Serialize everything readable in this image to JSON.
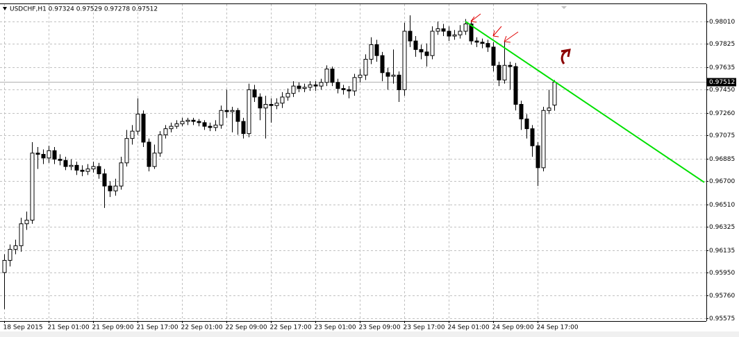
{
  "chart_data": {
    "type": "candlestick",
    "title": "USDCHF,H1 0.97324 0.97529 0.97278 0.97512",
    "categories": [
      "18 Sep 2015",
      null,
      null,
      null,
      null,
      null,
      null,
      null,
      "21 Sep 01:00",
      null,
      null,
      null,
      null,
      null,
      null,
      null,
      "21 Sep 09:00",
      null,
      null,
      null,
      null,
      null,
      null,
      null,
      "21 Sep 17:00",
      null,
      null,
      null,
      null,
      null,
      null,
      null,
      "22 Sep 01:00",
      null,
      null,
      null,
      null,
      null,
      null,
      null,
      "22 Sep 09:00",
      null,
      null,
      null,
      null,
      null,
      null,
      null,
      "22 Sep 17:00",
      null,
      null,
      null,
      null,
      null,
      null,
      null,
      "23 Sep 01:00",
      null,
      null,
      null,
      null,
      null,
      null,
      null,
      "23 Sep 09:00",
      null,
      null,
      null,
      null,
      null,
      null,
      null,
      "23 Sep 17:00",
      null,
      null,
      null,
      null,
      null,
      null,
      null,
      "24 Sep 01:00",
      null,
      null,
      null,
      null,
      null,
      null,
      null,
      "24 Sep 09:00",
      null,
      null,
      null,
      null,
      null,
      null,
      null,
      "24 Sep 17:00",
      null,
      null,
      null
    ],
    "open": [
      0.9595,
      0.9605,
      0.9614,
      0.9617,
      0.9635,
      0.9638,
      0.9693,
      0.9692,
      0.9689,
      0.9695,
      0.9688,
      0.9687,
      0.9682,
      0.9683,
      0.9679,
      0.9678,
      0.968,
      0.9682,
      0.9676,
      0.9666,
      0.9662,
      0.9666,
      0.9685,
      0.9705,
      0.9711,
      0.9725,
      0.9702,
      0.9682,
      0.9693,
      0.9708,
      0.9713,
      0.9715,
      0.9717,
      0.9719,
      0.972,
      0.9719,
      0.9718,
      0.9715,
      0.9714,
      0.9716,
      0.9728,
      0.9727,
      0.9728,
      0.9719,
      0.9709,
      0.9745,
      0.9739,
      0.973,
      0.9733,
      0.9732,
      0.9734,
      0.9739,
      0.9742,
      0.9748,
      0.9746,
      0.9747,
      0.9749,
      0.9748,
      0.9751,
      0.9762,
      0.9751,
      0.9746,
      0.9745,
      0.9744,
      0.9755,
      0.9757,
      0.977,
      0.9782,
      0.9773,
      0.9759,
      0.9756,
      0.9757,
      0.9745,
      0.9793,
      0.9785,
      0.9778,
      0.9776,
      0.9773,
      0.9793,
      0.9795,
      0.9793,
      0.9789,
      0.979,
      0.9793,
      0.9799,
      0.9785,
      0.9784,
      0.9783,
      0.978,
      0.9765,
      0.9753,
      0.9765,
      0.9764,
      0.9733,
      0.9721,
      0.9713,
      0.9699,
      0.9681,
      0.9728,
      0.97324
    ],
    "high": [
      0.961,
      0.9618,
      0.9622,
      0.964,
      0.9645,
      0.9702,
      0.9698,
      0.9696,
      0.9699,
      0.9698,
      0.9692,
      0.969,
      0.9688,
      0.9686,
      0.9683,
      0.9684,
      0.9686,
      0.9685,
      0.968,
      0.967,
      0.9672,
      0.969,
      0.9712,
      0.9716,
      0.9738,
      0.9728,
      0.9705,
      0.97,
      0.9711,
      0.9716,
      0.9718,
      0.972,
      0.9722,
      0.9722,
      0.9722,
      0.9721,
      0.972,
      0.9718,
      0.972,
      0.9732,
      0.9745,
      0.9731,
      0.973,
      0.9722,
      0.975,
      0.9749,
      0.9742,
      0.974,
      0.9738,
      0.9738,
      0.9743,
      0.9746,
      0.9752,
      0.9751,
      0.975,
      0.9752,
      0.9752,
      0.9754,
      0.9765,
      0.9764,
      0.9754,
      0.9749,
      0.9748,
      0.9758,
      0.9762,
      0.9774,
      0.9788,
      0.9786,
      0.9776,
      0.9763,
      0.9778,
      0.976,
      0.98,
      0.9806,
      0.9789,
      0.9782,
      0.9783,
      0.9797,
      0.9801,
      0.9799,
      0.9797,
      0.9794,
      0.9798,
      0.9803,
      0.9802,
      0.9788,
      0.9787,
      0.9786,
      0.9784,
      0.9768,
      0.9785,
      0.9768,
      0.9767,
      0.9736,
      0.9725,
      0.9716,
      0.9702,
      0.9731,
      0.9745,
      0.97529
    ],
    "low": [
      0.9565,
      0.96,
      0.961,
      0.9612,
      0.963,
      0.9635,
      0.968,
      0.9684,
      0.9685,
      0.9684,
      0.9683,
      0.9679,
      0.9679,
      0.9675,
      0.9674,
      0.9675,
      0.9677,
      0.9672,
      0.9648,
      0.9657,
      0.9658,
      0.9663,
      0.9682,
      0.97,
      0.9708,
      0.9698,
      0.9678,
      0.968,
      0.969,
      0.9705,
      0.971,
      0.9713,
      0.9715,
      0.9716,
      0.9716,
      0.9715,
      0.9712,
      0.9711,
      0.9711,
      0.9713,
      0.9722,
      0.971,
      0.9708,
      0.9705,
      0.9706,
      0.9735,
      0.972,
      0.9705,
      0.9718,
      0.9729,
      0.973,
      0.9736,
      0.9739,
      0.9743,
      0.9743,
      0.9744,
      0.9744,
      0.9745,
      0.9748,
      0.9748,
      0.9742,
      0.9741,
      0.9738,
      0.974,
      0.9751,
      0.9753,
      0.9766,
      0.9768,
      0.9752,
      0.9745,
      0.975,
      0.9735,
      0.974,
      0.978,
      0.9772,
      0.977,
      0.9764,
      0.977,
      0.979,
      0.9789,
      0.9785,
      0.9786,
      0.9787,
      0.979,
      0.9782,
      0.978,
      0.9779,
      0.9776,
      0.976,
      0.9748,
      0.975,
      0.9745,
      0.9728,
      0.9712,
      0.9705,
      0.969,
      0.9666,
      0.9678,
      0.9725,
      0.97278
    ],
    "close": [
      0.9605,
      0.9614,
      0.9617,
      0.9635,
      0.9638,
      0.9693,
      0.9692,
      0.9689,
      0.9695,
      0.9688,
      0.9687,
      0.9682,
      0.9683,
      0.9679,
      0.9678,
      0.968,
      0.9682,
      0.9676,
      0.9666,
      0.9662,
      0.9666,
      0.9685,
      0.9705,
      0.9711,
      0.9725,
      0.9702,
      0.9682,
      0.9693,
      0.9708,
      0.9713,
      0.9715,
      0.9717,
      0.9719,
      0.972,
      0.9719,
      0.9718,
      0.9715,
      0.9714,
      0.9716,
      0.9728,
      0.9727,
      0.9728,
      0.9719,
      0.9709,
      0.9745,
      0.9739,
      0.973,
      0.9733,
      0.9732,
      0.9734,
      0.9739,
      0.9742,
      0.9748,
      0.9746,
      0.9747,
      0.9749,
      0.9748,
      0.9751,
      0.9762,
      0.9751,
      0.9746,
      0.9745,
      0.9744,
      0.9755,
      0.9757,
      0.977,
      0.9782,
      0.9773,
      0.9759,
      0.9756,
      0.9757,
      0.9745,
      0.9793,
      0.9785,
      0.9778,
      0.9776,
      0.9773,
      0.9793,
      0.9795,
      0.9793,
      0.9789,
      0.979,
      0.9793,
      0.9799,
      0.9785,
      0.9784,
      0.9783,
      0.978,
      0.9765,
      0.9753,
      0.9765,
      0.9764,
      0.9733,
      0.9721,
      0.9713,
      0.9699,
      0.9681,
      0.9728,
      0.973,
      0.97512
    ],
    "ylim": [
      0.95552,
      0.98152
    ],
    "yticks": [
      {
        "value": 0.9801,
        "label": "0.98010"
      },
      0.97825,
      0.97635,
      {
        "value": 0.9745,
        "label": "0.97450"
      },
      {
        "value": 0.9726,
        "label": "0.97260"
      },
      0.97075,
      0.96885,
      {
        "value": 0.967,
        "label": "0.96700"
      },
      {
        "value": 0.9651,
        "label": "0.96510"
      },
      0.96325,
      0.96135,
      {
        "value": 0.9595,
        "label": "0.95950"
      },
      {
        "value": 0.9576,
        "label": "0.95760"
      },
      0.95575
    ],
    "grid": true,
    "current_price": 0.97512,
    "trendline": {
      "color": "#00e000",
      "x": [
        83,
        126
      ],
      "y": [
        0.9801,
        0.9669
      ]
    }
  }
}
